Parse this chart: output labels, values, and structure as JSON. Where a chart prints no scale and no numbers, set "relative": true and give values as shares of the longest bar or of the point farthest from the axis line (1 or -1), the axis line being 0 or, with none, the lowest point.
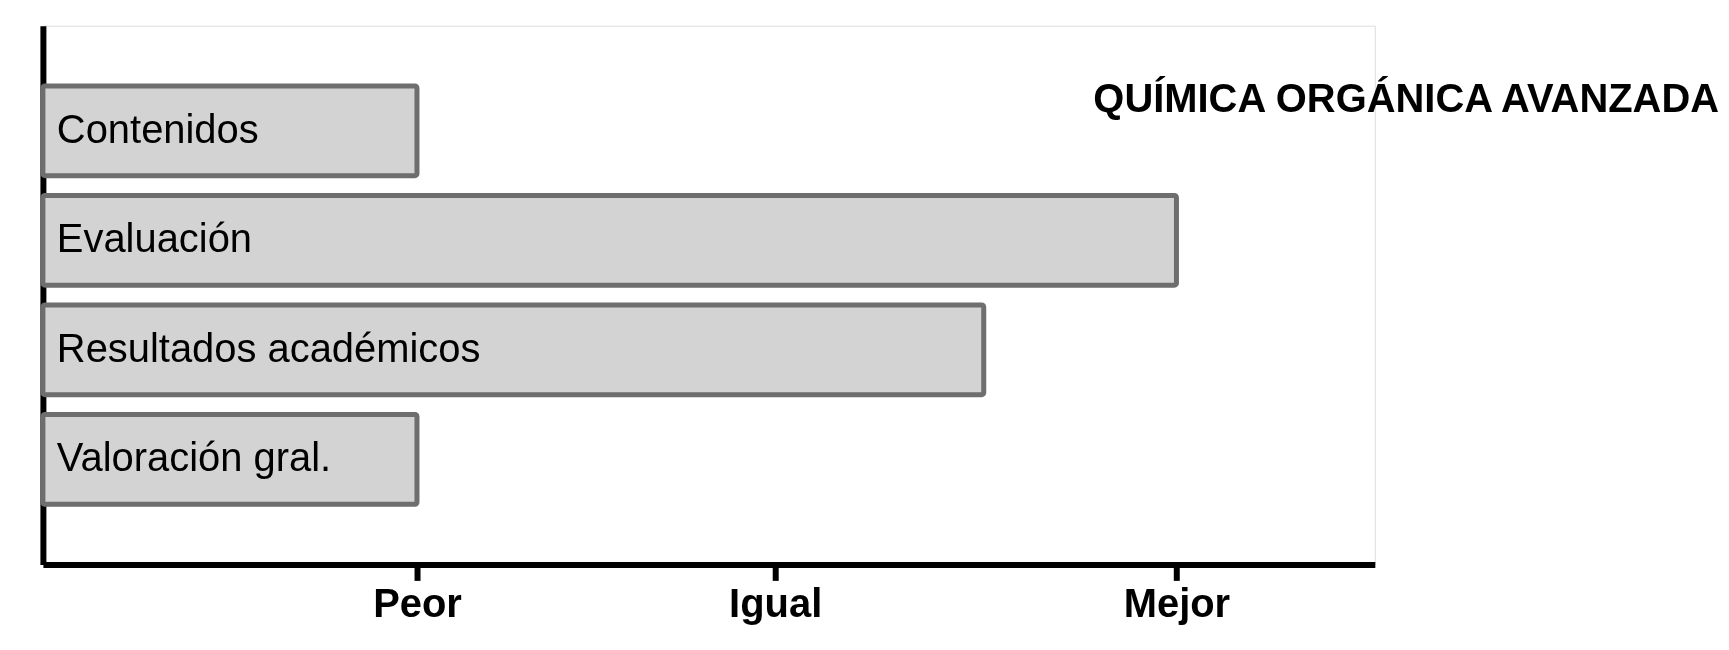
{
  "chart_data": {
    "type": "bar",
    "orientation": "horizontal",
    "relative": true,
    "title": "QUÍMICA ORGÁNICA AVANZADA",
    "categories": [
      "Contenidos",
      "Evaluación",
      "Resultados académicos",
      "Valoración gral."
    ],
    "values": [
      0.33,
      1,
      0.83,
      0.33
    ],
    "color": "#d3d3d3",
    "annotations": [
      "Peor",
      "Igual",
      "Mejor"
    ],
    "grid": false
  }
}
